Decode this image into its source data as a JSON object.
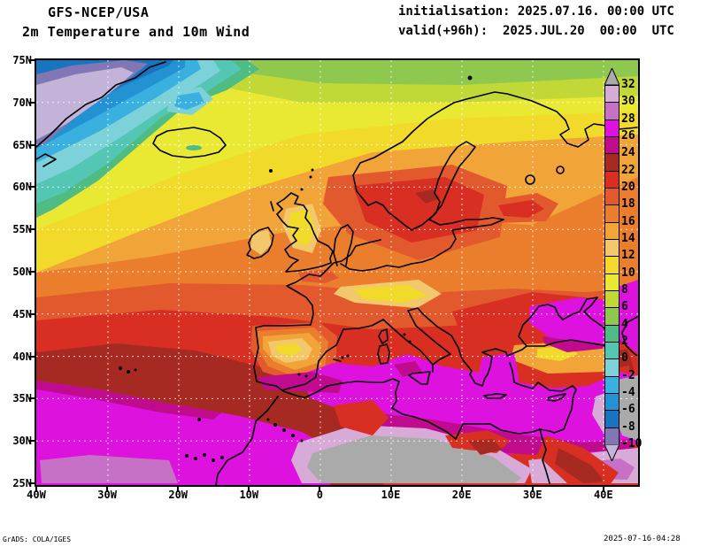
{
  "header": {
    "model": "GFS-NCEP/USA",
    "subtitle": "2m Temperature and 10m Wind",
    "init": "initialisation: 2025.07.16. 00:00 UTC",
    "valid": "valid(+96h):  2025.JUL.20  00:00  UTC"
  },
  "axes": {
    "lat_labels": [
      "75N",
      "70N",
      "65N",
      "60N",
      "55N",
      "50N",
      "45N",
      "40N",
      "35N",
      "30N",
      "25N"
    ],
    "lon_labels": [
      "40W",
      "30W",
      "20W",
      "10W",
      "0",
      "10E",
      "20E",
      "30E",
      "40E"
    ]
  },
  "colorbar": {
    "tick_labels": [
      "32",
      "30",
      "28",
      "26",
      "24",
      "22",
      "20",
      "18",
      "16",
      "14",
      "12",
      "10",
      "8",
      "6",
      "4",
      "2",
      "0",
      "-2",
      "-4",
      "-6",
      "-8",
      "-10"
    ],
    "above_max_color": "#aaaaaa",
    "below_min_color": "#c3b3d8",
    "segment_colors": [
      "#d8aad8",
      "#c671c6",
      "#de12de",
      "#c10b8e",
      "#a72a22",
      "#d92e22",
      "#e3592e",
      "#eb7e2d",
      "#f1a437",
      "#f3c76c",
      "#f2d92c",
      "#e9e832",
      "#c2d837",
      "#8fc84f",
      "#4fbc84",
      "#54c6b4",
      "#7cd2d8",
      "#3ab0e0",
      "#2292d2",
      "#1974c0",
      "#8177b5"
    ]
  },
  "footer": {
    "left": "GrADS: COLA/IGES",
    "right": "2025-07-16-04:28"
  },
  "chart_data": {
    "type": "heatmap",
    "title": "GFS-NCEP/USA",
    "subtitle": "2m Temperature and 10m Wind",
    "initialisation": "2025.07.16. 00:00 UTC",
    "valid": "2025.JUL.20 00:00 UTC (+96h)",
    "lat_range": [
      "25N",
      "75N"
    ],
    "lon_range": [
      "40W",
      "40E"
    ],
    "lat_ticks": [
      "75N",
      "70N",
      "65N",
      "60N",
      "55N",
      "50N",
      "45N",
      "40N",
      "35N",
      "30N",
      "25N"
    ],
    "lon_ticks": [
      "40W",
      "30W",
      "20W",
      "10W",
      "0",
      "10E",
      "20E",
      "30E",
      "40E"
    ],
    "scale_values": [
      32,
      30,
      28,
      26,
      24,
      22,
      20,
      18,
      16,
      14,
      12,
      10,
      8,
      6,
      4,
      2,
      0,
      -2,
      -4,
      -6,
      -8,
      -10
    ],
    "scale_colors_high_to_low": [
      "#d8aad8",
      "#c671c6",
      "#de12de",
      "#c10b8e",
      "#a72a22",
      "#d92e22",
      "#e3592e",
      "#eb7e2d",
      "#f1a437",
      "#f3c76c",
      "#f2d92c",
      "#e9e832",
      "#c2d837",
      "#8fc84f",
      "#4fbc84",
      "#54c6b4",
      "#7cd2d8",
      "#3ab0e0",
      "#2292d2",
      "#1974c0",
      "#8177b5"
    ],
    "above_max_color": "#aaaaaa",
    "below_min_color": "#c3b3d8",
    "grid": "dotted lat/lon graticule every 5 deg lat, 10 deg lon",
    "legend_position": "right inside map edge"
  }
}
